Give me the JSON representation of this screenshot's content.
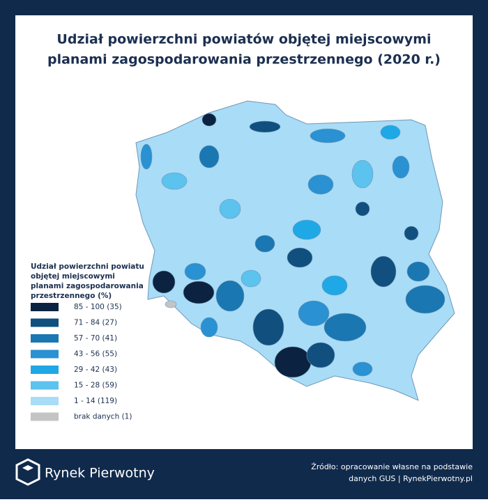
{
  "header": {
    "title_lines": [
      "Udział powierzchni powiatów objętej miejscowymi",
      "planami zagospodarowania przestrzennego (2020 r.)"
    ]
  },
  "legend": {
    "title_lines": [
      "Udział powierzchni powiatu",
      "objętej miejscowymi",
      "planami zagospodarowania",
      "przestrzennego (%)"
    ],
    "items": [
      {
        "label": "85 - 100 (35)",
        "color": "#0b2340"
      },
      {
        "label": "71 - 84 (27)",
        "color": "#104f7e"
      },
      {
        "label": "57 - 70 (41)",
        "color": "#1a77b2"
      },
      {
        "label": "43 - 56 (55)",
        "color": "#2a91d2"
      },
      {
        "label": "29 - 42 (43)",
        "color": "#1fa8e6"
      },
      {
        "label": "15 - 28 (59)",
        "color": "#5cc2ee"
      },
      {
        "label": "1 - 14 (119)",
        "color": "#a9dcf6"
      },
      {
        "label": "brak danych (1)",
        "color": "#c4c4c4"
      }
    ]
  },
  "footer": {
    "brand": "Rynek Pierwotny",
    "source_lines": [
      "Źródło: opracowanie własne na podstawie",
      "danych GUS | RynekPierwotny.pl"
    ]
  }
}
